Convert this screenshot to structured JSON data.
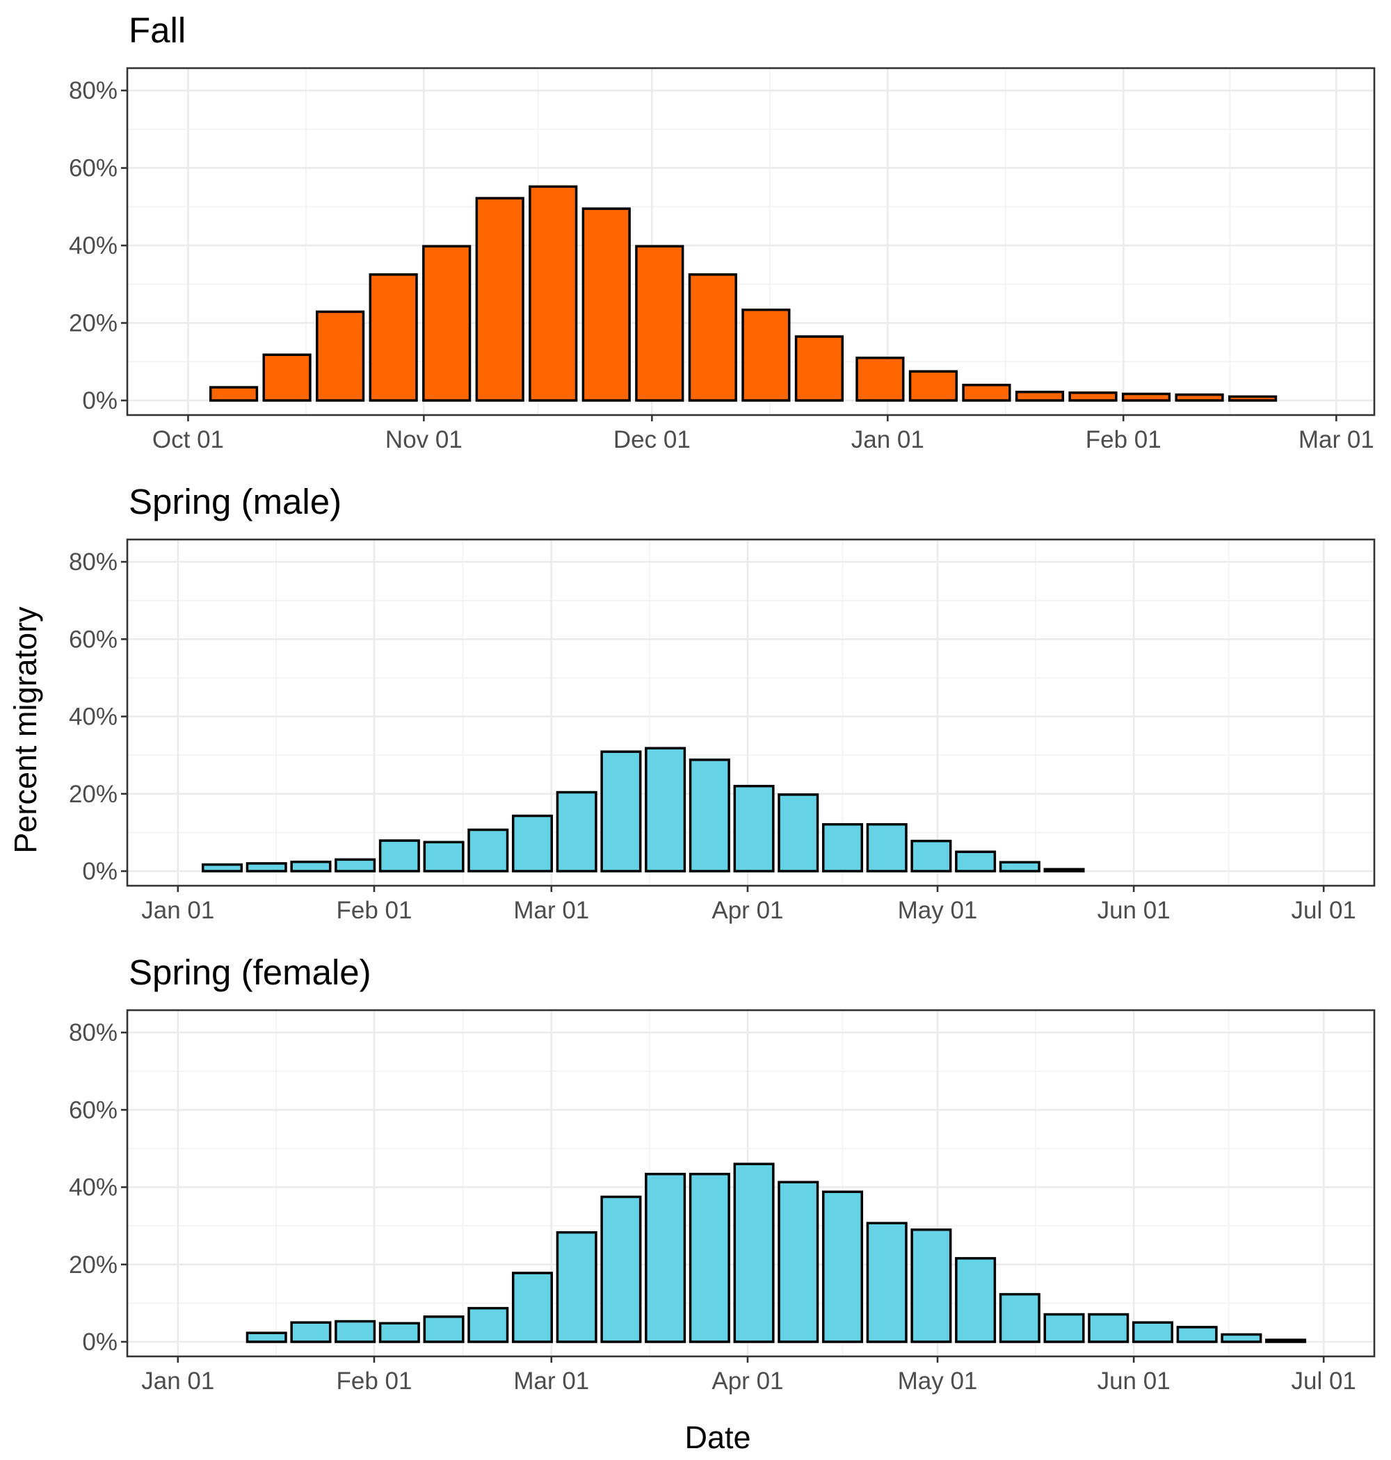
{
  "figure": {
    "ylabel": "Percent migratory",
    "xlabel": "Date"
  },
  "chart_data": [
    {
      "type": "bar",
      "title": "Fall",
      "color": "#ff6600",
      "xlim": [
        "2018-09-23",
        "2019-03-06"
      ],
      "x_ticks": [
        {
          "date": "2018-10-01",
          "label": "Oct 01"
        },
        {
          "date": "2018-11-01",
          "label": "Nov 01"
        },
        {
          "date": "2018-12-01",
          "label": "Dec 01"
        },
        {
          "date": "2019-01-01",
          "label": "Jan 01"
        },
        {
          "date": "2019-02-01",
          "label": "Feb 01"
        },
        {
          "date": "2019-03-01",
          "label": "Mar 01"
        }
      ],
      "ylim": [
        0,
        0.82
      ],
      "y_ticks": [
        {
          "value": 0,
          "label": "0%"
        },
        {
          "value": 0.2,
          "label": "20%"
        },
        {
          "value": 0.4,
          "label": "40%"
        },
        {
          "value": 0.6,
          "label": "60%"
        },
        {
          "value": 0.8,
          "label": "80%"
        }
      ],
      "grid": true,
      "x": [
        "2018-10-07",
        "2018-10-14",
        "2018-10-21",
        "2018-10-28",
        "2018-11-04",
        "2018-11-11",
        "2018-11-18",
        "2018-11-25",
        "2018-12-02",
        "2018-12-09",
        "2018-12-16",
        "2018-12-23",
        "2018-12-31",
        "2019-01-07",
        "2019-01-14",
        "2019-01-21",
        "2019-01-28",
        "2019-02-04",
        "2019-02-11",
        "2019-02-18"
      ],
      "values": [
        0.034,
        0.118,
        0.229,
        0.325,
        0.398,
        0.522,
        0.552,
        0.495,
        0.398,
        0.325,
        0.234,
        0.165,
        0.11,
        0.075,
        0.04,
        0.022,
        0.02,
        0.017,
        0.015,
        0.01
      ]
    },
    {
      "type": "bar",
      "title": "Spring (male)",
      "color": "#66d2e6",
      "xlim": [
        "2018-12-24",
        "2019-07-09"
      ],
      "x_ticks": [
        {
          "date": "2019-01-01",
          "label": "Jan 01"
        },
        {
          "date": "2019-02-01",
          "label": "Feb 01"
        },
        {
          "date": "2019-03-01",
          "label": "Mar 01"
        },
        {
          "date": "2019-04-01",
          "label": "Apr 01"
        },
        {
          "date": "2019-05-01",
          "label": "May 01"
        },
        {
          "date": "2019-06-01",
          "label": "Jun 01"
        },
        {
          "date": "2019-07-01",
          "label": "Jul 01"
        }
      ],
      "ylim": [
        0,
        0.82
      ],
      "y_ticks": [
        {
          "value": 0,
          "label": "0%"
        },
        {
          "value": 0.2,
          "label": "20%"
        },
        {
          "value": 0.4,
          "label": "40%"
        },
        {
          "value": 0.6,
          "label": "60%"
        },
        {
          "value": 0.8,
          "label": "80%"
        }
      ],
      "grid": true,
      "x": [
        "2019-01-08",
        "2019-01-15",
        "2019-01-22",
        "2019-01-29",
        "2019-02-05",
        "2019-02-12",
        "2019-02-19",
        "2019-02-26",
        "2019-03-05",
        "2019-03-12",
        "2019-03-19",
        "2019-03-26",
        "2019-04-02",
        "2019-04-09",
        "2019-04-16",
        "2019-04-23",
        "2019-04-30",
        "2019-05-07",
        "2019-05-14",
        "2019-05-21"
      ],
      "values": [
        0.017,
        0.02,
        0.024,
        0.03,
        0.079,
        0.075,
        0.107,
        0.143,
        0.204,
        0.309,
        0.318,
        0.288,
        0.22,
        0.198,
        0.121,
        0.121,
        0.078,
        0.05,
        0.023,
        0.005
      ]
    },
    {
      "type": "bar",
      "title": "Spring (female)",
      "color": "#66d2e6",
      "xlim": [
        "2018-12-24",
        "2019-07-09"
      ],
      "x_ticks": [
        {
          "date": "2019-01-01",
          "label": "Jan 01"
        },
        {
          "date": "2019-02-01",
          "label": "Feb 01"
        },
        {
          "date": "2019-03-01",
          "label": "Mar 01"
        },
        {
          "date": "2019-04-01",
          "label": "Apr 01"
        },
        {
          "date": "2019-05-01",
          "label": "May 01"
        },
        {
          "date": "2019-06-01",
          "label": "Jun 01"
        },
        {
          "date": "2019-07-01",
          "label": "Jul 01"
        }
      ],
      "ylim": [
        0,
        0.82
      ],
      "y_ticks": [
        {
          "value": 0,
          "label": "0%"
        },
        {
          "value": 0.2,
          "label": "20%"
        },
        {
          "value": 0.4,
          "label": "40%"
        },
        {
          "value": 0.6,
          "label": "60%"
        },
        {
          "value": 0.8,
          "label": "80%"
        }
      ],
      "grid": true,
      "x": [
        "2019-01-15",
        "2019-01-22",
        "2019-01-29",
        "2019-02-05",
        "2019-02-12",
        "2019-02-19",
        "2019-02-26",
        "2019-03-05",
        "2019-03-12",
        "2019-03-19",
        "2019-03-26",
        "2019-04-02",
        "2019-04-09",
        "2019-04-16",
        "2019-04-23",
        "2019-04-30",
        "2019-05-07",
        "2019-05-14",
        "2019-05-21",
        "2019-05-28",
        "2019-06-04",
        "2019-06-11",
        "2019-06-18",
        "2019-06-25"
      ],
      "values": [
        0.023,
        0.05,
        0.053,
        0.048,
        0.065,
        0.087,
        0.178,
        0.283,
        0.375,
        0.434,
        0.434,
        0.46,
        0.413,
        0.388,
        0.307,
        0.29,
        0.216,
        0.123,
        0.071,
        0.071,
        0.05,
        0.038,
        0.019,
        0.005
      ]
    }
  ]
}
